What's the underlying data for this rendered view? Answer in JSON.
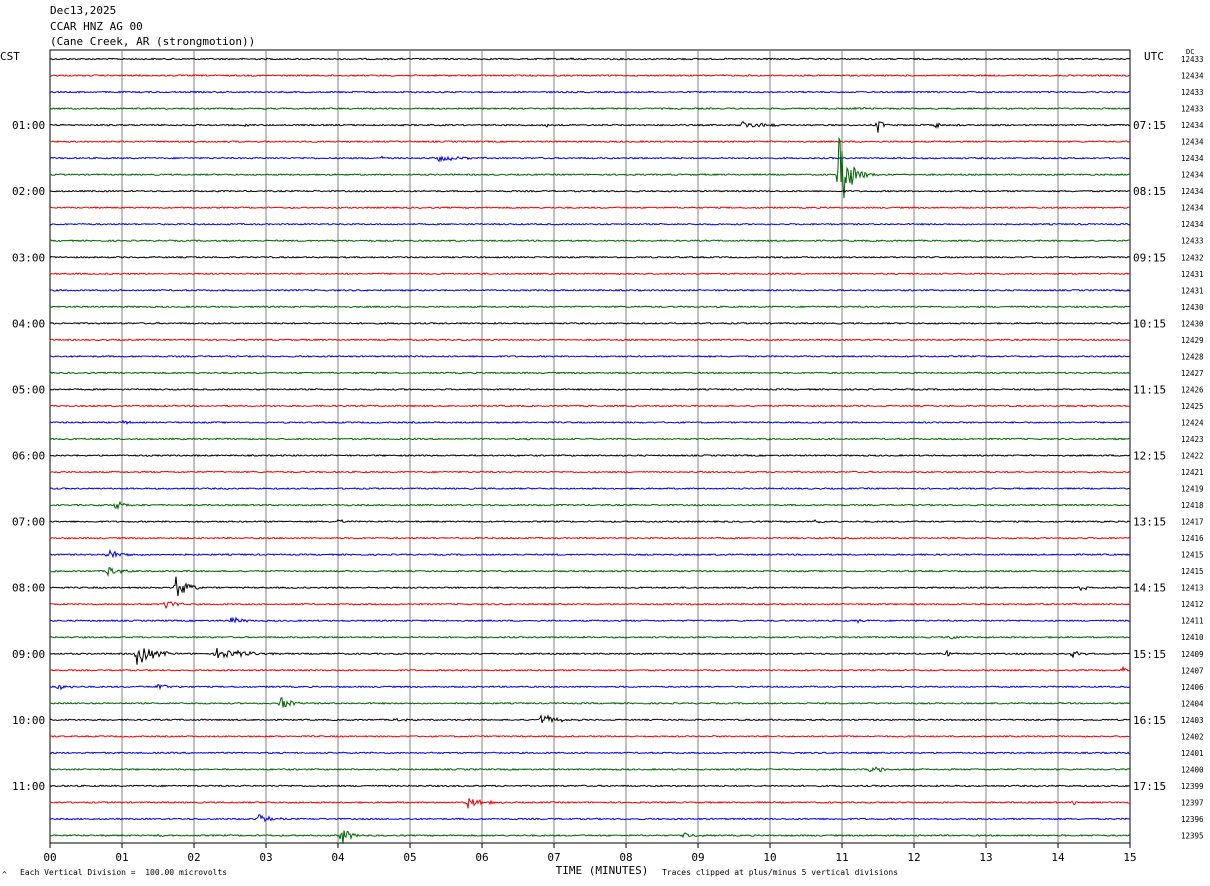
{
  "header": {
    "date": "Dec13,2025",
    "station": "CCAR HNZ AG 00",
    "location": "(Cane Creek, AR (strongmotion))"
  },
  "left_zone": "CST",
  "right_zone": "UTC",
  "dc_header": "DC",
  "footer": {
    "scale_note": "Each Vertical Division =  100.00 microvolts",
    "clip_note": "Traces clipped at plus/minus 5 vertical divisions"
  },
  "chart_data": {
    "type": "line",
    "title": "",
    "xlabel": "TIME (MINUTES)",
    "x_ticks": [
      "00",
      "01",
      "02",
      "03",
      "04",
      "05",
      "06",
      "07",
      "08",
      "09",
      "10",
      "11",
      "12",
      "13",
      "14",
      "15"
    ],
    "xlim": [
      0,
      15
    ],
    "grid": true,
    "trace_count": 48,
    "trace_colors": [
      "#000000",
      "#ee0000",
      "#0000dd",
      "#006400"
    ],
    "left_labels": [
      {
        "trace": 4,
        "text": "01:00"
      },
      {
        "trace": 8,
        "text": "02:00"
      },
      {
        "trace": 12,
        "text": "03:00"
      },
      {
        "trace": 16,
        "text": "04:00"
      },
      {
        "trace": 20,
        "text": "05:00"
      },
      {
        "trace": 24,
        "text": "06:00"
      },
      {
        "trace": 28,
        "text": "07:00"
      },
      {
        "trace": 32,
        "text": "08:00"
      },
      {
        "trace": 36,
        "text": "09:00"
      },
      {
        "trace": 40,
        "text": "10:00"
      },
      {
        "trace": 44,
        "text": "11:00"
      }
    ],
    "right_labels": [
      {
        "trace": 4,
        "text": "07:15"
      },
      {
        "trace": 8,
        "text": "08:15"
      },
      {
        "trace": 12,
        "text": "09:15"
      },
      {
        "trace": 16,
        "text": "10:15"
      },
      {
        "trace": 20,
        "text": "11:15"
      },
      {
        "trace": 24,
        "text": "12:15"
      },
      {
        "trace": 28,
        "text": "13:15"
      },
      {
        "trace": 32,
        "text": "14:15"
      },
      {
        "trace": 36,
        "text": "15:15"
      },
      {
        "trace": 40,
        "text": "16:15"
      },
      {
        "trace": 44,
        "text": "17:15"
      }
    ],
    "dc_values": [
      "12433",
      "12434",
      "12433",
      "12433",
      "12434",
      "12434",
      "12434",
      "12434",
      "12434",
      "12434",
      "12434",
      "12433",
      "12432",
      "12431",
      "12431",
      "12430",
      "12430",
      "12429",
      "12428",
      "12427",
      "12426",
      "12425",
      "12424",
      "12423",
      "12422",
      "12421",
      "12419",
      "12418",
      "12417",
      "12416",
      "12415",
      "12415",
      "12413",
      "12412",
      "12411",
      "12410",
      "12409",
      "12407",
      "12406",
      "12404",
      "12403",
      "12402",
      "12401",
      "12400",
      "12399",
      "12397",
      "12396",
      "12395"
    ],
    "events": [
      {
        "trace": 0,
        "minute": 7.2,
        "amp": 1.5,
        "dur": 0.3
      },
      {
        "trace": 3,
        "minute": 11.2,
        "amp": 2,
        "dur": 0.3
      },
      {
        "trace": 4,
        "minute": 2.7,
        "amp": 2,
        "dur": 0.1
      },
      {
        "trace": 4,
        "minute": 6.9,
        "amp": 2,
        "dur": 0.1
      },
      {
        "trace": 4,
        "minute": 9.6,
        "amp": 4,
        "dur": 0.8
      },
      {
        "trace": 4,
        "minute": 11.5,
        "amp": 8,
        "dur": 0.15
      },
      {
        "trace": 4,
        "minute": 12.3,
        "amp": 3,
        "dur": 0.4
      },
      {
        "trace": 6,
        "minute": 4.6,
        "amp": 3,
        "dur": 0.1
      },
      {
        "trace": 6,
        "minute": 5.4,
        "amp": 4,
        "dur": 0.6
      },
      {
        "trace": 7,
        "minute": 10.95,
        "amp": 42,
        "dur": 0.4
      },
      {
        "trace": 7,
        "minute": 11.4,
        "amp": 3,
        "dur": 0.3
      },
      {
        "trace": 22,
        "minute": 1.0,
        "amp": 2,
        "dur": 0.3
      },
      {
        "trace": 27,
        "minute": 0.9,
        "amp": 5,
        "dur": 0.4
      },
      {
        "trace": 28,
        "minute": 4.0,
        "amp": 3,
        "dur": 0.2
      },
      {
        "trace": 28,
        "minute": 10.6,
        "amp": 3,
        "dur": 0.3
      },
      {
        "trace": 30,
        "minute": 0.8,
        "amp": 6,
        "dur": 0.5
      },
      {
        "trace": 31,
        "minute": 0.8,
        "amp": 6,
        "dur": 0.4
      },
      {
        "trace": 32,
        "minute": 1.75,
        "amp": 12,
        "dur": 0.4
      },
      {
        "trace": 32,
        "minute": 14.3,
        "amp": 3,
        "dur": 0.3
      },
      {
        "trace": 33,
        "minute": 1.6,
        "amp": 5,
        "dur": 0.4
      },
      {
        "trace": 34,
        "minute": 2.5,
        "amp": 5,
        "dur": 0.4
      },
      {
        "trace": 34,
        "minute": 11.2,
        "amp": 2,
        "dur": 0.3
      },
      {
        "trace": 35,
        "minute": 12.5,
        "amp": 2,
        "dur": 0.5
      },
      {
        "trace": 36,
        "minute": 1.2,
        "amp": 12,
        "dur": 0.6
      },
      {
        "trace": 36,
        "minute": 2.3,
        "amp": 6,
        "dur": 1.0
      },
      {
        "trace": 36,
        "minute": 12.45,
        "amp": 5,
        "dur": 0.1
      },
      {
        "trace": 36,
        "minute": 14.2,
        "amp": 5,
        "dur": 0.3
      },
      {
        "trace": 37,
        "minute": 14.9,
        "amp": 5,
        "dur": 0.15
      },
      {
        "trace": 38,
        "minute": 0.1,
        "amp": 4,
        "dur": 0.3
      },
      {
        "trace": 38,
        "minute": 1.5,
        "amp": 4,
        "dur": 0.4
      },
      {
        "trace": 39,
        "minute": 3.2,
        "amp": 7,
        "dur": 0.4
      },
      {
        "trace": 40,
        "minute": 6.8,
        "amp": 6,
        "dur": 0.6
      },
      {
        "trace": 40,
        "minute": 4.8,
        "amp": 2,
        "dur": 0.4
      },
      {
        "trace": 43,
        "minute": 11.4,
        "amp": 8,
        "dur": 0.3
      },
      {
        "trace": 45,
        "minute": 5.8,
        "amp": 6,
        "dur": 0.5
      },
      {
        "trace": 45,
        "minute": 14.2,
        "amp": 3,
        "dur": 0.3
      },
      {
        "trace": 46,
        "minute": 2.9,
        "amp": 5,
        "dur": 0.4
      },
      {
        "trace": 47,
        "minute": 4.05,
        "amp": 11,
        "dur": 0.3
      },
      {
        "trace": 47,
        "minute": 8.8,
        "amp": 3,
        "dur": 0.4
      },
      {
        "trace": 47,
        "minute": 1.5,
        "amp": 2,
        "dur": 0.2
      }
    ]
  }
}
